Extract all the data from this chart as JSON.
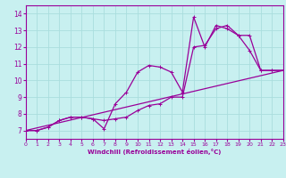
{
  "xlabel": "Windchill (Refroidissement éolien,°C)",
  "bg_color": "#c8f0f0",
  "grid_color": "#aadddd",
  "line_color": "#990099",
  "xlim": [
    0,
    23
  ],
  "ylim": [
    6.5,
    14.5
  ],
  "xticks": [
    0,
    1,
    2,
    3,
    4,
    5,
    6,
    7,
    8,
    9,
    10,
    11,
    12,
    13,
    14,
    15,
    16,
    17,
    18,
    19,
    20,
    21,
    22,
    23
  ],
  "yticks": [
    7,
    8,
    9,
    10,
    11,
    12,
    13,
    14
  ],
  "line1_x": [
    0,
    1,
    2,
    3,
    4,
    5,
    6,
    7,
    8,
    9,
    10,
    11,
    12,
    13,
    14,
    15,
    16,
    17,
    18,
    19,
    20,
    21,
    22,
    23
  ],
  "line1_y": [
    7.0,
    7.0,
    7.2,
    7.6,
    7.8,
    7.8,
    7.7,
    7.6,
    7.7,
    7.8,
    8.2,
    8.5,
    8.6,
    9.0,
    9.0,
    12.0,
    12.1,
    13.1,
    13.3,
    12.7,
    11.8,
    10.6,
    10.6,
    10.6
  ],
  "line2_x": [
    0,
    1,
    2,
    3,
    4,
    5,
    6,
    7,
    8,
    9,
    10,
    11,
    12,
    13,
    14,
    15,
    16,
    17,
    18,
    19,
    20,
    21,
    22,
    23
  ],
  "line2_y": [
    7.0,
    7.0,
    7.2,
    7.6,
    7.8,
    7.8,
    7.7,
    7.1,
    8.6,
    9.3,
    10.5,
    10.9,
    10.8,
    10.5,
    9.3,
    13.8,
    12.0,
    13.3,
    13.1,
    12.7,
    12.7,
    10.6,
    10.6,
    10.6
  ],
  "line3_x": [
    0,
    23
  ],
  "line3_y": [
    7.0,
    10.6
  ]
}
